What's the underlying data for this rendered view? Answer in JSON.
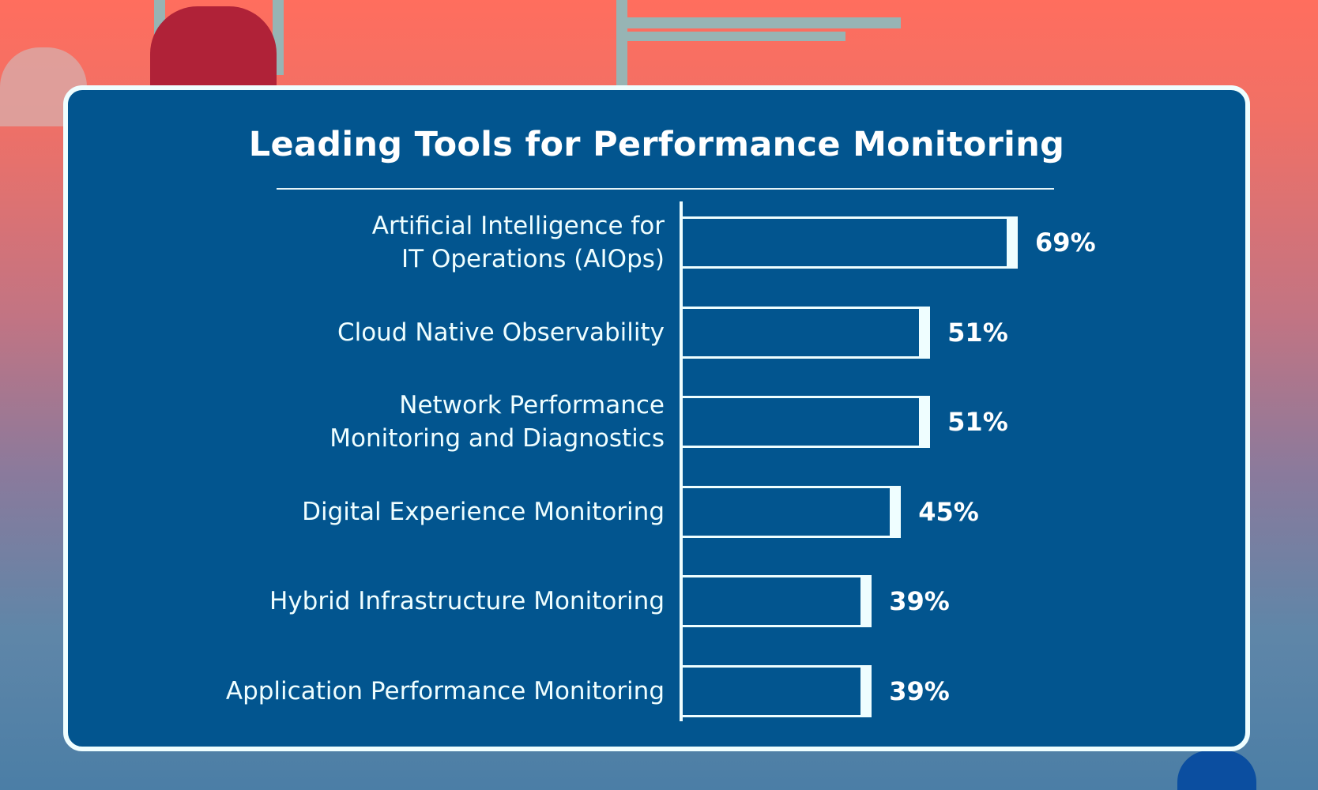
{
  "chart_data": {
    "type": "bar",
    "orientation": "horizontal",
    "title": "Leading Tools for Performance Monitoring",
    "categories": [
      [
        "Artificial Intelligence for",
        "IT Operations (AIOps)"
      ],
      [
        "Cloud Native Observability"
      ],
      [
        "Network Performance",
        "Monitoring and Diagnostics"
      ],
      [
        "Digital Experience Monitoring"
      ],
      [
        "Hybrid Infrastructure Monitoring"
      ],
      [
        "Application Performance Monitoring"
      ]
    ],
    "values": [
      69,
      51,
      51,
      45,
      39,
      39
    ],
    "value_labels": [
      "69%",
      "51%",
      "51%",
      "45%",
      "39%",
      "39%"
    ],
    "unit": "%",
    "grid": false,
    "colors": {
      "card": "#02558f",
      "bar_outline": "#effeff",
      "text": "#ffffff"
    }
  }
}
